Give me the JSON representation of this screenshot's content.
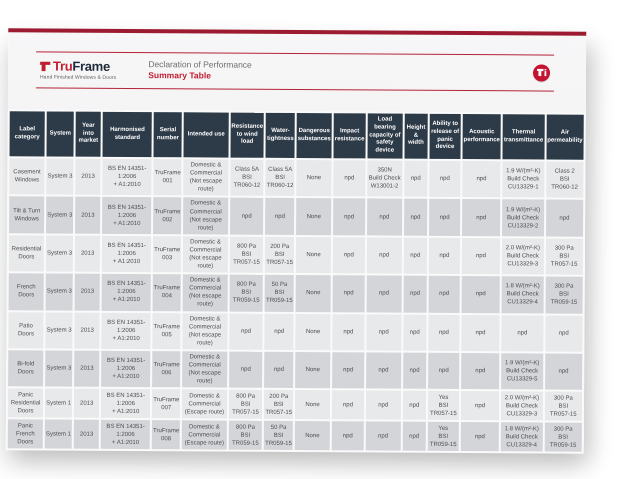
{
  "page": {
    "logo": {
      "brand_tru": "Tru",
      "brand_frame": "Frame",
      "tagline": "Hand Finished Windows & Doors"
    },
    "header": {
      "title": "Declaration of Performance",
      "subtitle": "Summary Table"
    },
    "colors": {
      "accent_red": "#b52238",
      "top_bar_red": "#9c1b30",
      "badge_red": "#c4122f",
      "table_header_bg": "#2d3a48",
      "row_light": "#e8e9eb",
      "row_dark": "#d3d5d8"
    }
  },
  "table": {
    "columns": [
      "Label category",
      "System",
      "Year into market",
      "Harmonised standard",
      "Serial number",
      "Intended use",
      "Resistance to wind load",
      "Water-tightness",
      "Dangerous substances",
      "Impact resistance",
      "Load bearing capacity of safety device",
      "Height & width",
      "Ability to release of panic device",
      "Acoustic performance",
      "Thermal transmittance",
      "Air permeability"
    ],
    "rows": [
      [
        "Casement\nWindows",
        "System 3",
        "2013",
        "BS EN 14351-1:2006\n+ A1:2010",
        "TruFrame\n001",
        "Domestic &\nCommercial\n(Not escape route)",
        "Class 5A\nBSI\nTR060-12",
        "Class 5A\nBSI\nTR060-12",
        "None",
        "npd",
        "350N\nBuild Check\nW13001-2",
        "npd",
        "npd",
        "npd",
        "1.9 W/(m²-K)\nBuild Check\nCU13329-1",
        "Class 2\nBSI\nTR060-12"
      ],
      [
        "Tilt & Turn\nWindows",
        "System 3",
        "2013",
        "BS EN 14351-1:2006\n+ A1:2010",
        "TruFrame\n002",
        "Domestic &\nCommercial\n(Not escape route)",
        "npd",
        "npd",
        "None",
        "npd",
        "npd",
        "npd",
        "npd",
        "npd",
        "1.9 W/(m²-K)\nBuild Check\nCU13329-2",
        "npd"
      ],
      [
        "Residential\nDoors",
        "System 3",
        "2013",
        "BS EN 14351-1:2006\n+ A1:2010",
        "TruFrame\n003",
        "Domestic &\nCommercial\n(Not escape route)",
        "800 Pa\nBSI\nTR057-15",
        "200 Pa\nBSI\nTR057-15",
        "None",
        "npd",
        "npd",
        "npd",
        "npd",
        "npd",
        "2.0 W/(m²-K)\nBuild Check\nCU13329-3",
        "300 Pa\nBSI\nTR057-15"
      ],
      [
        "French\nDoors",
        "System 3",
        "2013",
        "BS EN 14351-1:2006\n+ A1:2010",
        "TruFrame\n004",
        "Domestic &\nCommercial\n(Not escape route)",
        "800 Pa\nBSI\nTR059-15",
        "50 Pa\nBSI\nTR059-15",
        "None",
        "npd",
        "npd",
        "npd",
        "npd",
        "npd",
        "1.8 W/(m²-K)\nBuild Check\nCU13329-4",
        "300 Pa\nBSI\nTR059-15"
      ],
      [
        "Patio\nDoors",
        "System 3",
        "2013",
        "BS EN 14351-1:2006\n+ A1:2010",
        "TruFrame\n005",
        "Domestic &\nCommercial\n(Not escape route)",
        "npd",
        "npd",
        "None",
        "npd",
        "npd",
        "npd",
        "npd",
        "npd",
        "npd",
        "npd"
      ],
      [
        "Bi-fold\nDoors",
        "System 3",
        "2013",
        "BS EN 14351-1:2006\n+ A1:2010",
        "TruFrame\n006",
        "Domestic &\nCommercial\n(Not escape route)",
        "npd",
        "npd",
        "None",
        "npd",
        "npd",
        "npd",
        "npd",
        "npd",
        "1.9 W/(m²-K)\nBuild Check\nCU13329-5",
        "npd"
      ],
      [
        "Panic\nResidential\nDoors",
        "System 1",
        "2013",
        "BS EN 14351-1:2006\n+ A1:2010",
        "TruFrame\n007",
        "Domestic &\nCommercial\n(Escape route)",
        "800 Pa\nBSI\nTR057-15",
        "200 Pa\nBSI\nTR057-15",
        "None",
        "npd",
        "npd",
        "npd",
        "Yes\nBSI\nTR057-15",
        "npd",
        "2.0 W/(m²-K)\nBuild Check\nCU13329-3",
        "300 Pa\nBSI\nTR057-15"
      ],
      [
        "Panic\nFrench\nDoors",
        "System 1",
        "2013",
        "BS EN 14351-1:2006\n+ A1:2010",
        "TruFrame\n008",
        "Domestic &\nCommercial\n(Escape route)",
        "800 Pa\nBSI\nTR059-15",
        "50 Pa\nBSI\nTR059-15",
        "None",
        "npd",
        "npd",
        "npd",
        "Yes\nBSI\nTR059-15",
        "npd",
        "1.8 W/(m²-K)\nBuild Check\nCU13329-4",
        "300 Pa\nBSI\nTR059-15"
      ]
    ]
  }
}
